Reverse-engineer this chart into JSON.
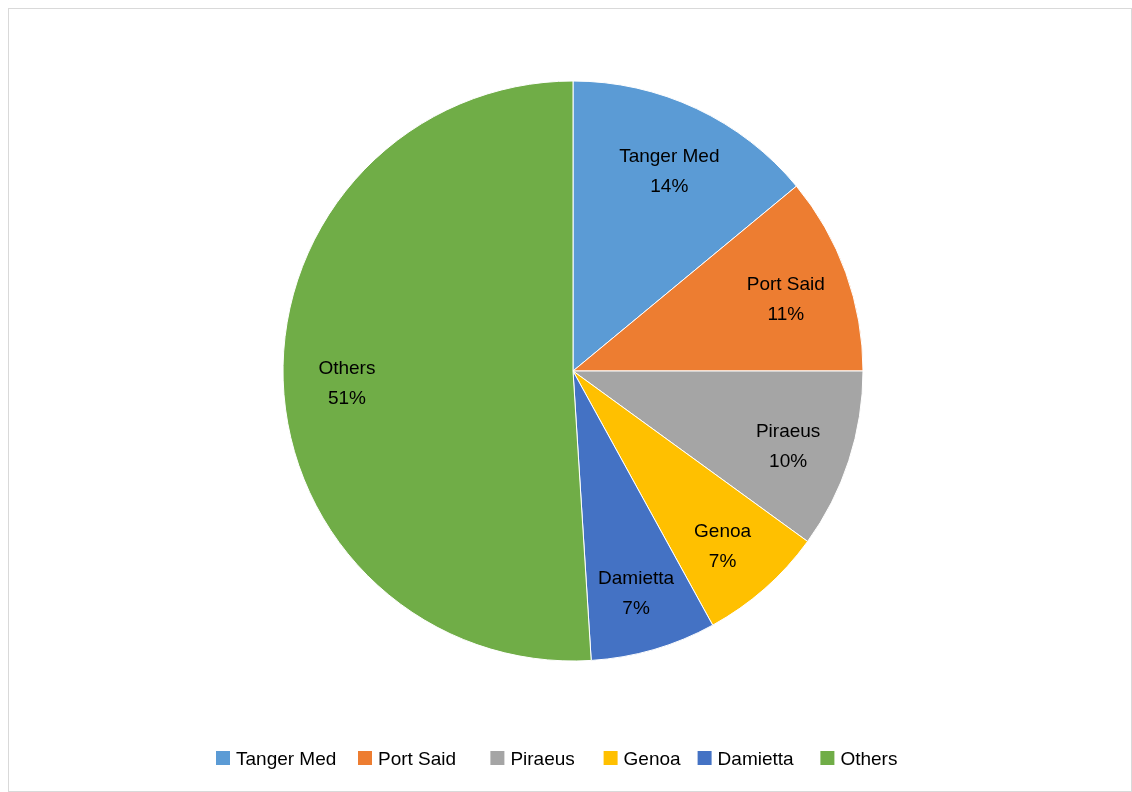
{
  "chart_data": {
    "type": "pie",
    "categories": [
      "Tanger Med",
      "Port Said",
      "Piraeus",
      "Genoa",
      "Damietta",
      "Others"
    ],
    "values": [
      14,
      11,
      10,
      7,
      7,
      51
    ],
    "colors": [
      "#5b9bd5",
      "#ed7d31",
      "#a5a5a5",
      "#ffc000",
      "#4472c4",
      "#70ad47"
    ],
    "value_labels": [
      "14%",
      "11%",
      "10%",
      "7%",
      "7%",
      "51%"
    ],
    "legend": "bottom"
  }
}
